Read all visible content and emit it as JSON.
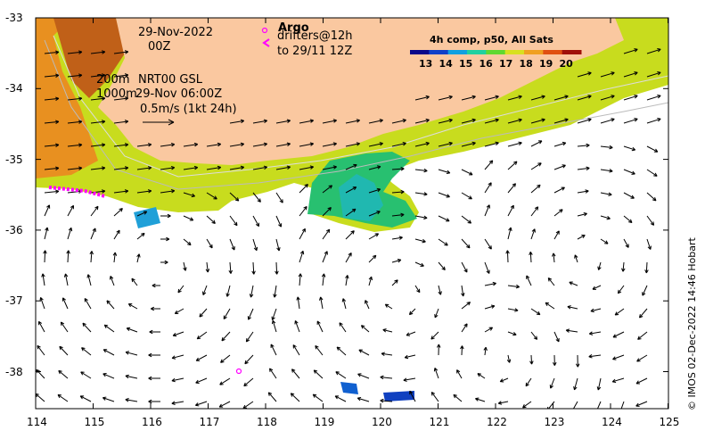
{
  "date_line1": "29-Nov-2022",
  "date_line2": "00Z",
  "argo_label": "Argo",
  "drifters_line1": "drifters@12h",
  "drifters_line2": "to 29/11 12Z",
  "iso_200m": "200m",
  "iso_1000m": "1000m",
  "nrt_label": "NRT00 GSL",
  "nrt_time": "29-Nov 06:00Z",
  "scale_label": "0.5m/s (1kt 24h)",
  "colorbar": {
    "title": "4h comp, p50, All Sats",
    "labels": [
      "13",
      "14",
      "15",
      "16",
      "17",
      "18",
      "19",
      "20"
    ],
    "colors": [
      "#08088a",
      "#1040c8",
      "#10a0e0",
      "#20d0a0",
      "#60d830",
      "#d8e020",
      "#f0a020",
      "#e05010",
      "#a01008"
    ]
  },
  "credit": "© IMOS 02-Dec-2022 14:46 Hobart",
  "axis": {
    "lat_ticks": [
      "-33",
      "-34",
      "-35",
      "-36",
      "-37",
      "-38"
    ],
    "lon_ticks": [
      "114",
      "115",
      "116",
      "117",
      "118",
      "119",
      "120",
      "121",
      "122",
      "123",
      "124",
      "125"
    ]
  },
  "colors": {
    "land": "#fac8a0",
    "argo": "#ff00ff",
    "drifter": "#ff00ff",
    "isobath": "#dddddd"
  }
}
